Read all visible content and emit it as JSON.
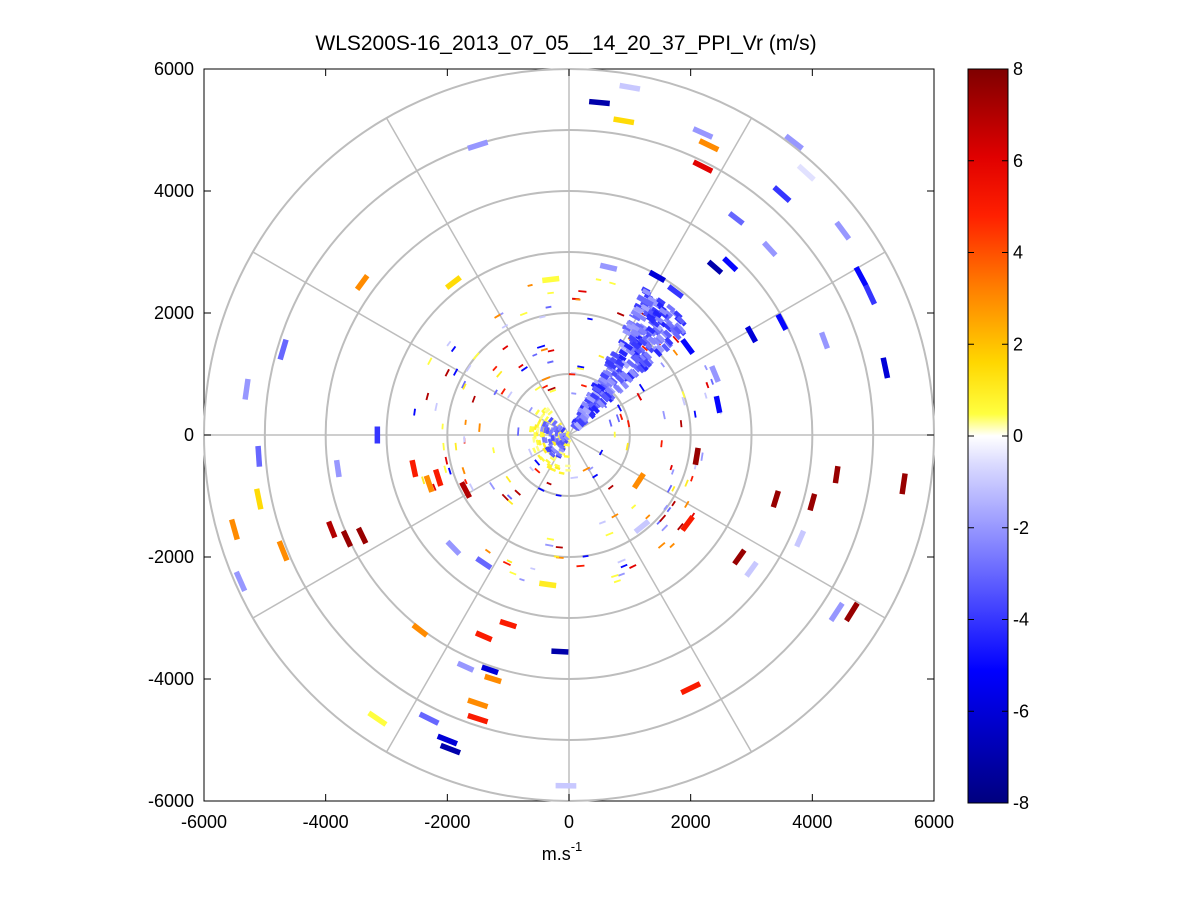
{
  "chart_data": {
    "type": "polar-ppi",
    "title": "WLS200S-16_2013_07_05__14_20_37_PPI_Vr (m/s)",
    "xlabel_base": "m.s",
    "xlabel_exp": "-1",
    "ylabel": "",
    "xlim": [
      -6000,
      6000
    ],
    "ylim": [
      -6000,
      6000
    ],
    "xticks": [
      -6000,
      -4000,
      -2000,
      0,
      2000,
      4000,
      6000
    ],
    "yticks": [
      -6000,
      -4000,
      -2000,
      0,
      2000,
      4000,
      6000
    ],
    "range_rings": [
      1000,
      2000,
      3000,
      4000,
      5000,
      6000
    ],
    "spokes_deg": [
      0,
      30,
      60,
      90,
      120,
      150,
      180,
      210,
      240,
      270,
      300,
      330
    ],
    "colorbar": {
      "min": -8,
      "max": 8,
      "ticks": [
        -8,
        -6,
        -4,
        -2,
        0,
        2,
        4,
        6,
        8
      ],
      "colormap": [
        [
          0.0,
          "#00007f"
        ],
        [
          0.18,
          "#0000ff"
        ],
        [
          0.46,
          "#d9d9ff"
        ],
        [
          0.5,
          "#ffffff"
        ],
        [
          0.53,
          "#ffff40"
        ],
        [
          0.6,
          "#ffd700"
        ],
        [
          0.7,
          "#ff8000"
        ],
        [
          0.8,
          "#ff2000"
        ],
        [
          0.88,
          "#e00000"
        ],
        [
          1.0,
          "#7f0000"
        ]
      ]
    },
    "samples": [
      {
        "x": 500,
        "y": 5450,
        "v": -7
      },
      {
        "x": 900,
        "y": 5150,
        "v": 1.5
      },
      {
        "x": 2200,
        "y": 4950,
        "v": -2
      },
      {
        "x": 2300,
        "y": 4750,
        "v": 3
      },
      {
        "x": 2200,
        "y": 4400,
        "v": 6
      },
      {
        "x": 3700,
        "y": 4800,
        "v": -2
      },
      {
        "x": 3900,
        "y": 4300,
        "v": -0.5
      },
      {
        "x": 3500,
        "y": 3950,
        "v": -4
      },
      {
        "x": 2750,
        "y": 3550,
        "v": -3
      },
      {
        "x": 4500,
        "y": 3350,
        "v": -2
      },
      {
        "x": 3300,
        "y": 3050,
        "v": -2
      },
      {
        "x": 2650,
        "y": 2800,
        "v": -5
      },
      {
        "x": 2400,
        "y": 2750,
        "v": -7
      },
      {
        "x": 4800,
        "y": 2600,
        "v": -5
      },
      {
        "x": 4950,
        "y": 2300,
        "v": -4
      },
      {
        "x": 3500,
        "y": 1850,
        "v": -5
      },
      {
        "x": 4200,
        "y": 1550,
        "v": -2
      },
      {
        "x": 5200,
        "y": 1100,
        "v": -6
      },
      {
        "x": 3000,
        "y": 1650,
        "v": -6
      },
      {
        "x": 1750,
        "y": 2350,
        "v": -4
      },
      {
        "x": 1450,
        "y": 2600,
        "v": -6
      },
      {
        "x": 1250,
        "y": 2200,
        "v": -3
      },
      {
        "x": 650,
        "y": 2750,
        "v": -2
      },
      {
        "x": 1950,
        "y": 1450,
        "v": -5
      },
      {
        "x": 2400,
        "y": 1000,
        "v": -2
      },
      {
        "x": 2450,
        "y": 500,
        "v": -5
      },
      {
        "x": -300,
        "y": 2550,
        "v": 0.5
      },
      {
        "x": 1000,
        "y": 5700,
        "v": -1
      },
      {
        "x": -1500,
        "y": 4750,
        "v": -2
      },
      {
        "x": -1900,
        "y": 2500,
        "v": 1.5
      },
      {
        "x": -3400,
        "y": 2500,
        "v": 3
      },
      {
        "x": -4700,
        "y": 1400,
        "v": -3
      },
      {
        "x": -5300,
        "y": 750,
        "v": -2
      },
      {
        "x": -3150,
        "y": 0,
        "v": -4
      },
      {
        "x": -5100,
        "y": -350,
        "v": -3
      },
      {
        "x": -3800,
        "y": -550,
        "v": -2
      },
      {
        "x": -2550,
        "y": -550,
        "v": 5
      },
      {
        "x": -2300,
        "y": -800,
        "v": 3
      },
      {
        "x": -2150,
        "y": -700,
        "v": 5
      },
      {
        "x": -1700,
        "y": -900,
        "v": 7
      },
      {
        "x": -5100,
        "y": -1050,
        "v": 1.5
      },
      {
        "x": -5500,
        "y": -1550,
        "v": 3
      },
      {
        "x": -4700,
        "y": -1900,
        "v": 3
      },
      {
        "x": -3900,
        "y": -1550,
        "v": 7
      },
      {
        "x": -3650,
        "y": -1700,
        "v": 7.5
      },
      {
        "x": -3400,
        "y": -1650,
        "v": 7.5
      },
      {
        "x": -5400,
        "y": -2400,
        "v": -2
      },
      {
        "x": -1900,
        "y": -1850,
        "v": -2
      },
      {
        "x": -1400,
        "y": -2100,
        "v": -3
      },
      {
        "x": -350,
        "y": -2450,
        "v": 1
      },
      {
        "x": -2450,
        "y": -3200,
        "v": 3
      },
      {
        "x": -1400,
        "y": -3300,
        "v": 5
      },
      {
        "x": -1000,
        "y": -3100,
        "v": 5
      },
      {
        "x": -1700,
        "y": -3800,
        "v": -2
      },
      {
        "x": -1300,
        "y": -3850,
        "v": -6
      },
      {
        "x": -1250,
        "y": -4000,
        "v": 3
      },
      {
        "x": -1500,
        "y": -4400,
        "v": 3
      },
      {
        "x": -1500,
        "y": -4650,
        "v": 5
      },
      {
        "x": -2300,
        "y": -4650,
        "v": -3
      },
      {
        "x": -2000,
        "y": -5000,
        "v": -6
      },
      {
        "x": -1950,
        "y": -5150,
        "v": -7
      },
      {
        "x": -3150,
        "y": -4650,
        "v": 0.5
      },
      {
        "x": -50,
        "y": -5750,
        "v": -1
      },
      {
        "x": -150,
        "y": -3550,
        "v": -7
      },
      {
        "x": 2000,
        "y": -4150,
        "v": 5
      },
      {
        "x": 1950,
        "y": -1450,
        "v": 5
      },
      {
        "x": 2800,
        "y": -2000,
        "v": 7.5
      },
      {
        "x": 3000,
        "y": -2200,
        "v": -1
      },
      {
        "x": 3400,
        "y": -1050,
        "v": 7.5
      },
      {
        "x": 4000,
        "y": -1100,
        "v": 7.5
      },
      {
        "x": 3800,
        "y": -1700,
        "v": -1
      },
      {
        "x": 4400,
        "y": -650,
        "v": 7.5
      },
      {
        "x": 5500,
        "y": -800,
        "v": 7.5
      },
      {
        "x": 4400,
        "y": -2900,
        "v": -2
      },
      {
        "x": 4650,
        "y": -2900,
        "v": 7.5
      },
      {
        "x": 2100,
        "y": -350,
        "v": 7.5
      },
      {
        "x": 1150,
        "y": -750,
        "v": 3
      },
      {
        "x": 1200,
        "y": -1500,
        "v": -1
      }
    ],
    "dense_sector": {
      "az_from": 42,
      "az_to": 62,
      "r_from": 150,
      "r_to": 2700,
      "v": -3
    },
    "near_yellow": {
      "az_from": 90,
      "az_to": 230,
      "r_from": 30,
      "r_to": 650,
      "v": 0.6
    }
  }
}
